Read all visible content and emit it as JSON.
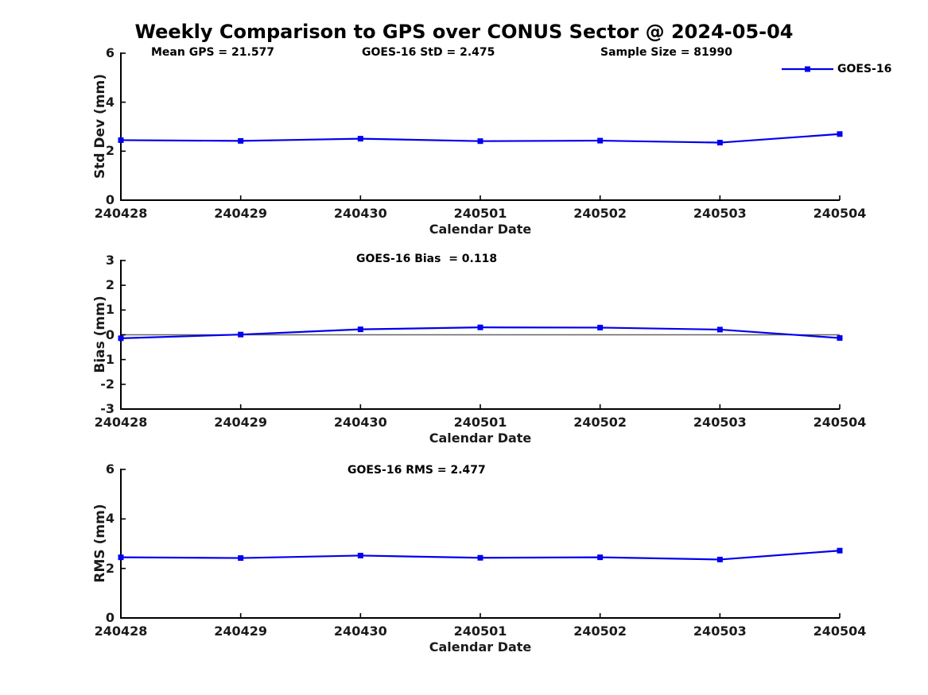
{
  "title": "Weekly Comparison to GPS over CONUS Sector @ 2024-05-04",
  "legend": {
    "label": "GOES-16",
    "position": "top-right",
    "frame": false
  },
  "colors": {
    "line": "#0000ee",
    "marker": "#0000ee",
    "axis": "#000000",
    "tick_text": "#1a1a1a",
    "zero_line": "#666666"
  },
  "categories": [
    "240428",
    "240429",
    "240430",
    "240501",
    "240502",
    "240503",
    "240504"
  ],
  "chart_data": [
    {
      "type": "line",
      "ylabel": "Std Dev (mm)",
      "xlabel": "Calendar Date",
      "ylim": [
        0,
        6
      ],
      "yticks": [
        0,
        2,
        4,
        6
      ],
      "grid": false,
      "series": [
        {
          "name": "GOES-16",
          "values": [
            2.45,
            2.42,
            2.51,
            2.41,
            2.43,
            2.35,
            2.7
          ]
        }
      ],
      "annotations": [
        {
          "text": "Mean GPS = 21.577"
        },
        {
          "text": "GOES-16 StD = 2.475"
        },
        {
          "text": "Sample Size = 81990"
        }
      ],
      "zero_line": false,
      "legend": true
    },
    {
      "type": "line",
      "ylabel": "Bias (mm)",
      "xlabel": "Calendar Date",
      "ylim": [
        -3,
        3
      ],
      "yticks": [
        -3,
        -2,
        -1,
        0,
        1,
        2,
        3
      ],
      "grid": false,
      "series": [
        {
          "name": "GOES-16",
          "values": [
            -0.14,
            0.01,
            0.22,
            0.3,
            0.29,
            0.21,
            -0.13
          ]
        }
      ],
      "annotations": [
        {
          "text": "GOES-16 Bias  = 0.118"
        }
      ],
      "zero_line": true,
      "legend": false
    },
    {
      "type": "line",
      "ylabel": "RMS (mm)",
      "xlabel": "Calendar Date",
      "ylim": [
        0,
        6
      ],
      "yticks": [
        0,
        2,
        4,
        6
      ],
      "grid": false,
      "series": [
        {
          "name": "GOES-16",
          "values": [
            2.45,
            2.42,
            2.52,
            2.43,
            2.45,
            2.36,
            2.72
          ]
        }
      ],
      "annotations": [
        {
          "text": "GOES-16 RMS = 2.477"
        }
      ],
      "zero_line": false,
      "legend": false
    }
  ]
}
